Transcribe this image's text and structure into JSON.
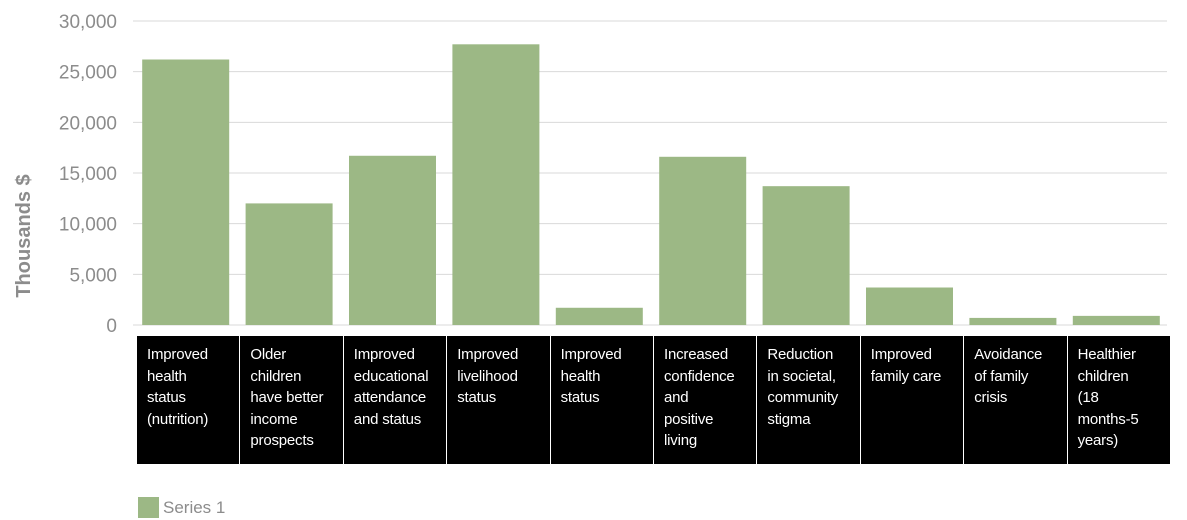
{
  "chart_data": {
    "type": "bar",
    "categories": [
      "Improved\nhealth\nstatus\n(nutrition)",
      "Older\nchildren\nhave better\nincome\nprospects",
      "Improved\neducational\nattendance\nand status",
      "Improved\nlivelihood\nstatus",
      "Improved\nhealth\nstatus",
      "Increased\nconfidence\nand\npositive\nliving",
      "Reduction\nin societal,\ncommunity\nstigma",
      "Improved\nfamily care",
      "Avoidance\nof family\ncrisis",
      "Healthier\nchildren\n(18\nmonths-5\nyears)"
    ],
    "series": [
      {
        "name": "Series 1",
        "values": [
          26200,
          12000,
          16700,
          27700,
          1700,
          16600,
          13700,
          3700,
          700,
          900
        ],
        "color": "#9cb885"
      }
    ],
    "ylabel": "Thousands $",
    "xlabel": "",
    "ylim": [
      0,
      30000
    ],
    "yticks": [
      "0",
      "5,000",
      "10,000",
      "15,000",
      "20,000",
      "25,000",
      "30,000"
    ],
    "grid": true,
    "legend": "bottom-left"
  },
  "colors": {
    "bar": "#9cb885",
    "grid": "#d9d9d9",
    "axis_text": "#8c8c8c",
    "category_bg": "#000000",
    "category_text": "#ffffff"
  }
}
